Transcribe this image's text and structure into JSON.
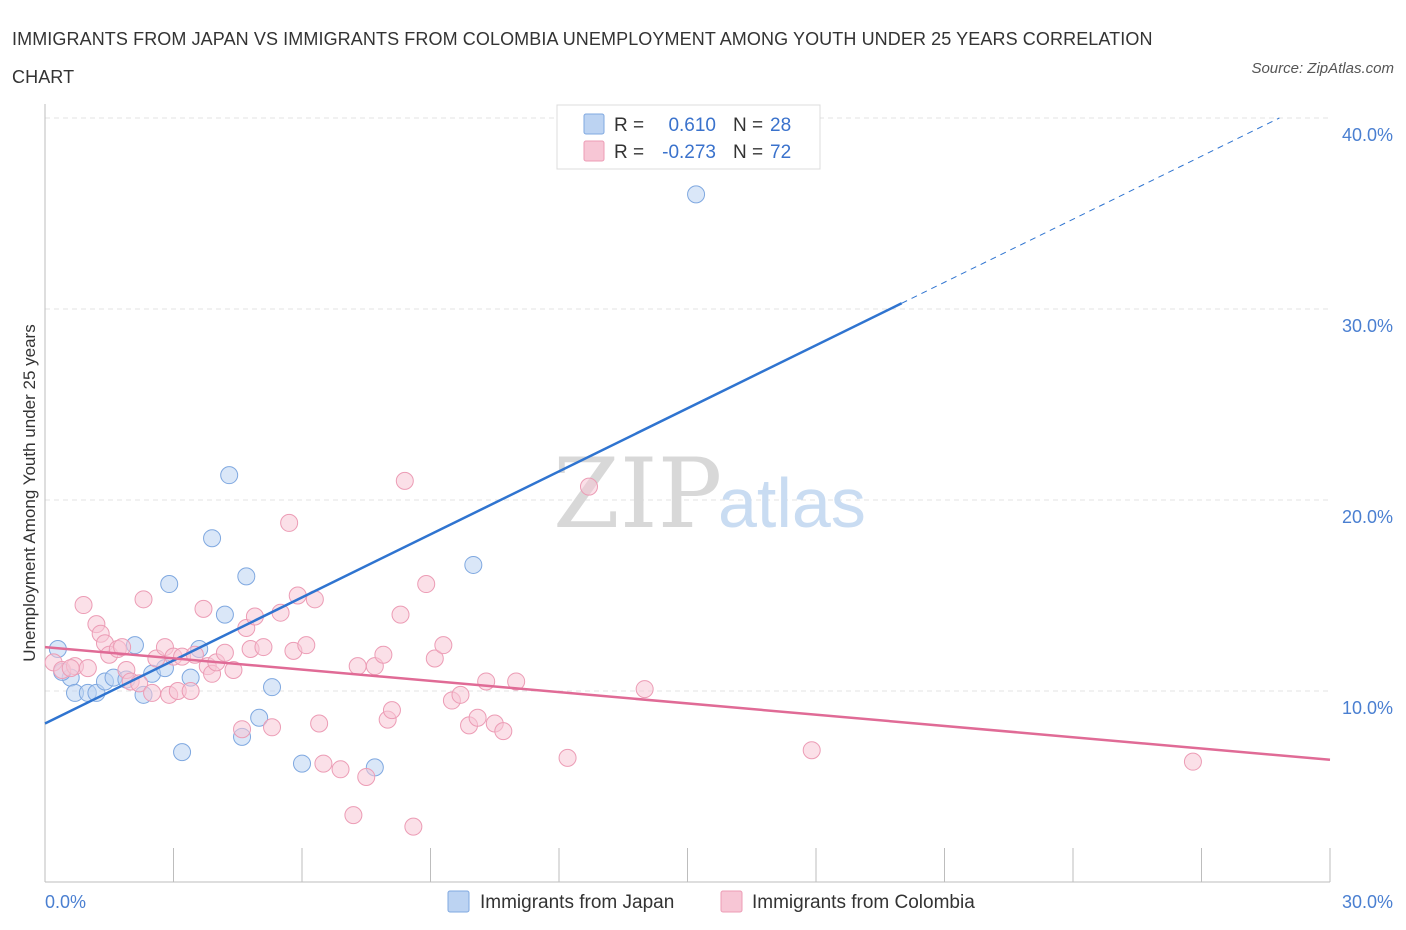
{
  "chart_data": {
    "type": "scatter",
    "title": "IMMIGRANTS FROM JAPAN VS IMMIGRANTS FROM COLOMBIA UNEMPLOYMENT AMONG YOUTH UNDER 25 YEARS CORRELATION CHART",
    "source": "Source: ZipAtlas.com",
    "ylabel": "Unemployment Among Youth under 25 years",
    "xlim": [
      0,
      30
    ],
    "ylim": [
      0,
      40
    ],
    "x_ticks": [
      {
        "value": 0,
        "label": "0.0%"
      },
      {
        "value": 30,
        "label": "30.0%"
      }
    ],
    "y_ticks": [
      {
        "value": 10,
        "label": "10.0%"
      },
      {
        "value": 20,
        "label": "20.0%"
      },
      {
        "value": 30,
        "label": "30.0%"
      },
      {
        "value": 40,
        "label": "40.0%"
      }
    ],
    "watermark": {
      "zip": "ZIP",
      "atlas": "atlas"
    },
    "legend": [
      {
        "r_label": "R =",
        "r_value": "0.610",
        "n_label": "N =",
        "n_value": "28"
      },
      {
        "r_label": "R =",
        "r_value": "-0.273",
        "n_label": "N =",
        "n_value": "72"
      }
    ],
    "series": [
      {
        "name": "Immigrants from Japan",
        "color": "#7fa8e0",
        "fill": "#bcd3f2",
        "line_color": "#2f74d0",
        "trend": {
          "x0": 0,
          "y0": 8.3,
          "x1": 20,
          "y1": 30.3,
          "dash_to_x": 30
        },
        "points": [
          [
            0.3,
            12.2
          ],
          [
            0.6,
            10.7
          ],
          [
            0.7,
            9.9
          ],
          [
            1.0,
            9.9
          ],
          [
            1.2,
            9.9
          ],
          [
            1.4,
            10.5
          ],
          [
            1.6,
            10.7
          ],
          [
            1.9,
            10.6
          ],
          [
            2.1,
            12.4
          ],
          [
            2.3,
            9.8
          ],
          [
            2.5,
            10.9
          ],
          [
            2.8,
            11.2
          ],
          [
            2.9,
            15.6
          ],
          [
            3.2,
            6.8
          ],
          [
            3.4,
            10.7
          ],
          [
            3.6,
            12.2
          ],
          [
            3.9,
            18.0
          ],
          [
            4.2,
            14.0
          ],
          [
            4.3,
            21.3
          ],
          [
            4.6,
            7.6
          ],
          [
            4.7,
            16.0
          ],
          [
            5.0,
            8.6
          ],
          [
            5.3,
            10.2
          ],
          [
            6.0,
            6.2
          ],
          [
            7.7,
            6.0
          ],
          [
            10.0,
            16.6
          ],
          [
            15.2,
            36.0
          ],
          [
            0.4,
            11.0
          ]
        ]
      },
      {
        "name": "Immigrants from Colombia",
        "color": "#ec9cb5",
        "fill": "#f7c6d5",
        "line_color": "#e06b96",
        "trend": {
          "x0": 0,
          "y0": 12.3,
          "x1": 30,
          "y1": 6.4
        },
        "points": [
          [
            0.2,
            11.5
          ],
          [
            0.4,
            11.1
          ],
          [
            0.7,
            11.3
          ],
          [
            0.9,
            14.5
          ],
          [
            1.0,
            11.2
          ],
          [
            1.2,
            13.5
          ],
          [
            1.3,
            13.0
          ],
          [
            1.4,
            12.5
          ],
          [
            1.5,
            11.9
          ],
          [
            1.7,
            12.2
          ],
          [
            1.9,
            11.1
          ],
          [
            2.0,
            10.5
          ],
          [
            2.2,
            10.4
          ],
          [
            2.3,
            14.8
          ],
          [
            2.5,
            9.9
          ],
          [
            2.6,
            11.7
          ],
          [
            2.8,
            12.3
          ],
          [
            2.9,
            9.8
          ],
          [
            3.0,
            11.8
          ],
          [
            3.1,
            10.0
          ],
          [
            3.2,
            11.8
          ],
          [
            3.4,
            10.0
          ],
          [
            3.5,
            11.9
          ],
          [
            3.7,
            14.3
          ],
          [
            3.8,
            11.3
          ],
          [
            3.9,
            10.9
          ],
          [
            4.0,
            11.5
          ],
          [
            4.2,
            12.0
          ],
          [
            4.4,
            11.1
          ],
          [
            4.6,
            8.0
          ],
          [
            4.7,
            13.3
          ],
          [
            4.8,
            12.2
          ],
          [
            4.9,
            13.9
          ],
          [
            5.1,
            12.3
          ],
          [
            5.3,
            8.1
          ],
          [
            5.5,
            14.1
          ],
          [
            5.7,
            18.8
          ],
          [
            5.8,
            12.1
          ],
          [
            5.9,
            15.0
          ],
          [
            6.1,
            12.4
          ],
          [
            6.3,
            14.8
          ],
          [
            6.4,
            8.3
          ],
          [
            6.5,
            6.2
          ],
          [
            6.9,
            5.9
          ],
          [
            7.2,
            3.5
          ],
          [
            7.3,
            11.3
          ],
          [
            7.5,
            5.5
          ],
          [
            7.7,
            11.3
          ],
          [
            7.9,
            11.9
          ],
          [
            8.0,
            8.5
          ],
          [
            8.1,
            9.0
          ],
          [
            8.3,
            14.0
          ],
          [
            8.4,
            21.0
          ],
          [
            8.6,
            2.9
          ],
          [
            8.9,
            15.6
          ],
          [
            9.1,
            11.7
          ],
          [
            9.3,
            12.4
          ],
          [
            9.5,
            9.5
          ],
          [
            9.7,
            9.8
          ],
          [
            9.9,
            8.2
          ],
          [
            10.1,
            8.6
          ],
          [
            10.3,
            10.5
          ],
          [
            10.5,
            8.3
          ],
          [
            10.7,
            7.9
          ],
          [
            11.0,
            10.5
          ],
          [
            12.2,
            6.5
          ],
          [
            12.7,
            20.7
          ],
          [
            14.0,
            10.1
          ],
          [
            17.9,
            6.9
          ],
          [
            26.8,
            6.3
          ],
          [
            0.6,
            11.2
          ],
          [
            1.8,
            12.3
          ]
        ]
      }
    ]
  }
}
